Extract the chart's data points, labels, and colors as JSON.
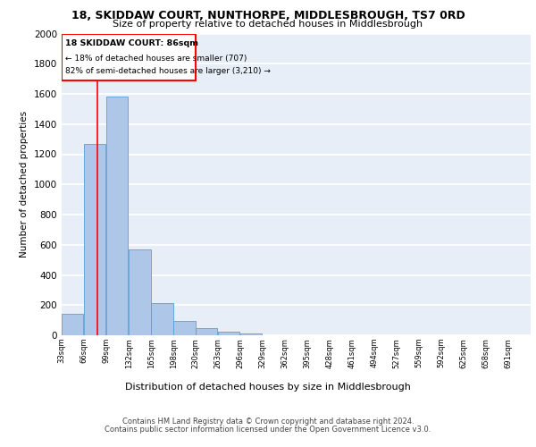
{
  "title1": "18, SKIDDAW COURT, NUNTHORPE, MIDDLESBROUGH, TS7 0RD",
  "title2": "Size of property relative to detached houses in Middlesbrough",
  "xlabel": "Distribution of detached houses by size in Middlesbrough",
  "ylabel": "Number of detached properties",
  "footer1": "Contains HM Land Registry data © Crown copyright and database right 2024.",
  "footer2": "Contains public sector information licensed under the Open Government Licence v3.0.",
  "bar_color": "#aec6e8",
  "bar_edge_color": "#5a9fd4",
  "background_color": "#e8eef8",
  "property_line_x": 86,
  "annotation_title": "18 SKIDDAW COURT: 86sqm",
  "annotation_line1": "← 18% of detached houses are smaller (707)",
  "annotation_line2": "82% of semi-detached houses are larger (3,210) →",
  "categories": [
    "33sqm",
    "66sqm",
    "99sqm",
    "132sqm",
    "165sqm",
    "198sqm",
    "230sqm",
    "263sqm",
    "296sqm",
    "329sqm",
    "362sqm",
    "395sqm",
    "428sqm",
    "461sqm",
    "494sqm",
    "527sqm",
    "559sqm",
    "592sqm",
    "625sqm",
    "658sqm",
    "691sqm"
  ],
  "bin_edges": [
    33,
    66,
    99,
    132,
    165,
    198,
    230,
    263,
    296,
    329,
    362,
    395,
    428,
    461,
    494,
    527,
    559,
    592,
    625,
    658,
    691,
    724
  ],
  "values": [
    140,
    1270,
    1580,
    570,
    215,
    93,
    50,
    22,
    12,
    0,
    0,
    0,
    0,
    0,
    0,
    0,
    0,
    0,
    0,
    0,
    0
  ],
  "ylim": [
    0,
    2000
  ],
  "xlim_start": 33,
  "xlim_end": 724
}
